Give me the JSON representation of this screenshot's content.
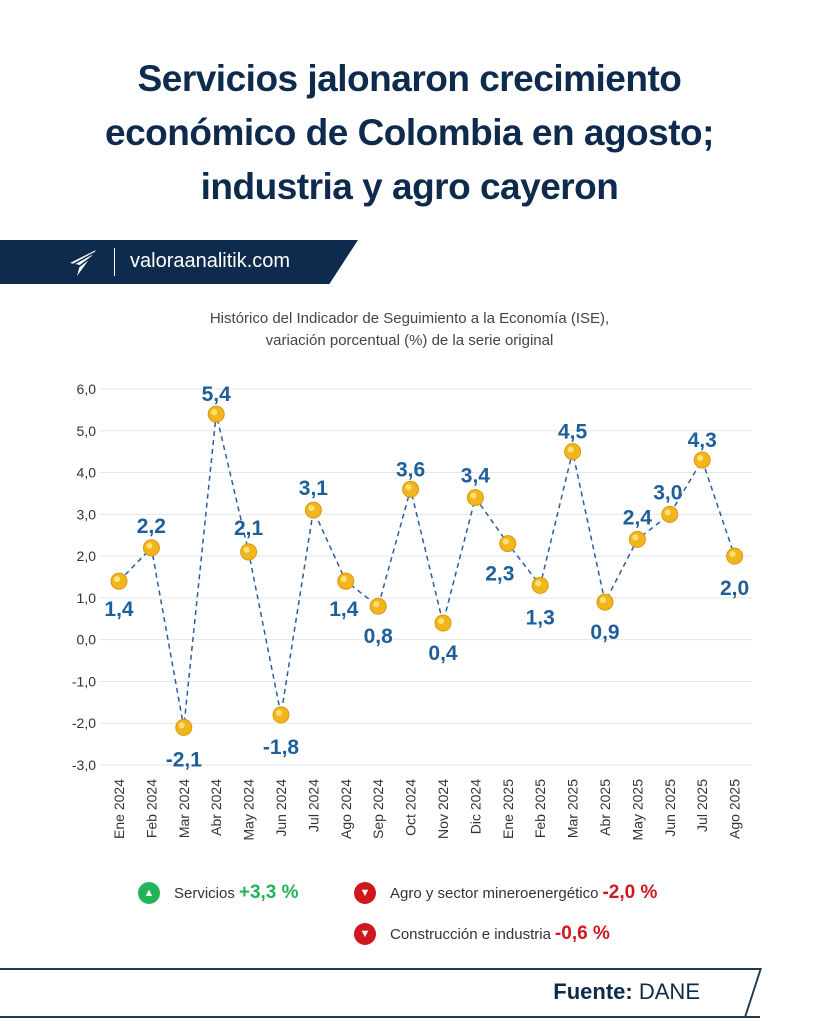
{
  "title_lines": [
    "Servicios jalonaron crecimiento",
    "económico de Colombia en agosto;",
    "industria y agro cayeron"
  ],
  "brand": {
    "site": "valoraanalitik.com",
    "logo_icon": "paper-plane-logo"
  },
  "chart_data": {
    "type": "line",
    "title_lines": [
      "Histórico del Indicador de Seguimiento a la Economía (ISE),",
      "variación porcentual (%) de la serie original"
    ],
    "categories": [
      "Ene 2024",
      "Feb 2024",
      "Mar 2024",
      "Abr 2024",
      "May 2024",
      "Jun 2024",
      "Jul 2024",
      "Ago 2024",
      "Sep 2024",
      "Oct 2024",
      "Nov 2024",
      "Dic 2024",
      "Ene 2025",
      "Feb 2025",
      "Mar 2025",
      "Abr 2025",
      "May 2025",
      "Jun 2025",
      "Jul 2025",
      "Ago 2025"
    ],
    "values": [
      1.4,
      2.2,
      -2.1,
      5.4,
      2.1,
      -1.8,
      3.1,
      1.4,
      0.8,
      3.6,
      0.4,
      3.4,
      2.3,
      1.3,
      4.5,
      0.9,
      2.4,
      3.0,
      4.3,
      2.0
    ],
    "value_labels": [
      "1,4",
      "2,2",
      "-2,1",
      "5,4",
      "2,1",
      "-1,8",
      "3,1",
      "1,4",
      "0,8",
      "3,6",
      "0,4",
      "3,4",
      "2,3",
      "1,3",
      "4,5",
      "0,9",
      "2,4",
      "3,0",
      "4,3",
      "2,0"
    ],
    "yticks": [
      "6,0",
      "5,0",
      "4,0",
      "3,0",
      "2,0",
      "1,0",
      "0,0",
      "-1,0",
      "-2,0",
      "-3,0"
    ],
    "ylim": [
      -3,
      6
    ],
    "grid": true,
    "line_style": "dashed",
    "colors": {
      "line": "#2a5f9e",
      "marker": "#f2b51c",
      "label": "#1f5f99",
      "grid": "#e6e6e6"
    }
  },
  "legend": [
    {
      "label": "Servicios",
      "value": "+3,3 %",
      "direction": "up",
      "color": "#22b457"
    },
    {
      "label": "Agro y sector mineroenergético",
      "value": "-2,0 %",
      "direction": "down",
      "color": "#d0161e"
    },
    {
      "label": "Construcción e industria",
      "value": "-0,6 %",
      "direction": "down",
      "color": "#d0161e"
    }
  ],
  "footer": {
    "source_label": "Fuente:",
    "source": "DANE"
  }
}
